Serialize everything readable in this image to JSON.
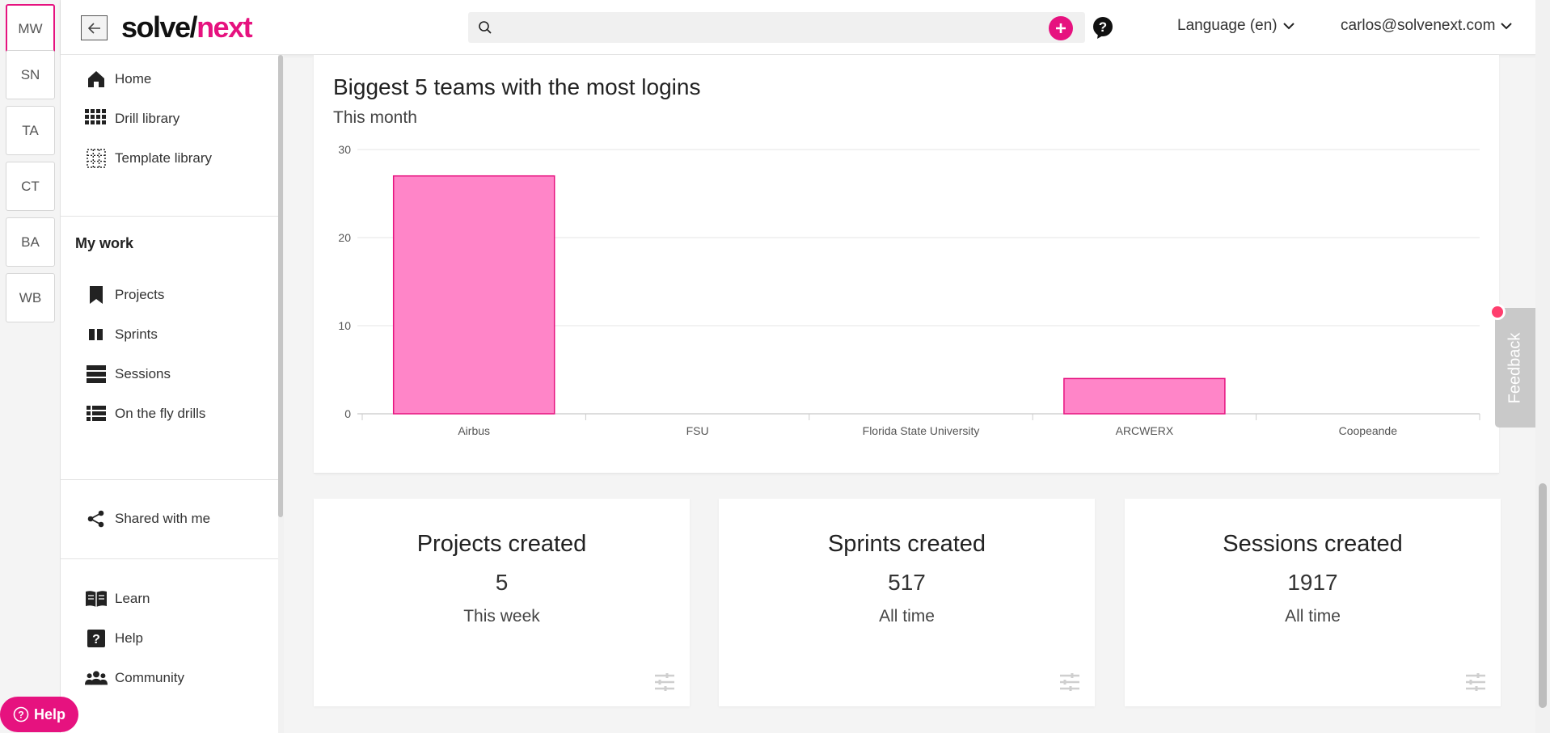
{
  "workspaces": [
    {
      "label": "MW",
      "active": true
    },
    {
      "label": "SN"
    },
    {
      "label": "TA"
    },
    {
      "label": "CT"
    },
    {
      "label": "BA"
    },
    {
      "label": "WB"
    }
  ],
  "header": {
    "logo_part1": "solve/",
    "logo_part2": "next",
    "search_placeholder": "",
    "language_label": "Language (en)",
    "user_email": "carlos@solvenext.com"
  },
  "sidebar": {
    "items": [
      {
        "label": "Home",
        "icon": "home-icon"
      },
      {
        "label": "Drill library",
        "icon": "grid-icon"
      },
      {
        "label": "Template library",
        "icon": "dotted-grid-icon"
      }
    ],
    "my_work_title": "My work",
    "my_work_items": [
      {
        "label": "Projects",
        "icon": "bookmark-icon"
      },
      {
        "label": "Sprints",
        "icon": "columns-icon"
      },
      {
        "label": "Sessions",
        "icon": "stack-icon"
      },
      {
        "label": "On the fly drills",
        "icon": "list-icon"
      }
    ],
    "shared_item": {
      "label": "Shared with me",
      "icon": "share-icon"
    },
    "bottom_items": [
      {
        "label": "Learn",
        "icon": "book-icon"
      },
      {
        "label": "Help",
        "icon": "question-icon"
      },
      {
        "label": "Community",
        "icon": "people-icon"
      }
    ]
  },
  "chart": {
    "title": "Biggest 5 teams with the most logins",
    "subtitle": "This month"
  },
  "chart_data": {
    "type": "bar",
    "title": "Biggest 5 teams with the most logins",
    "subtitle": "This month",
    "categories": [
      "Airbus",
      "FSU",
      "Florida State University",
      "ARCWERX",
      "Coopeande"
    ],
    "values": [
      27,
      0,
      0,
      4,
      0
    ],
    "ylim": [
      0,
      30
    ],
    "yticks": [
      0,
      10,
      20,
      30
    ],
    "grid": true,
    "bar_color": "#ff85c8",
    "bar_border": "#e6127f"
  },
  "stats": [
    {
      "title": "Projects created",
      "value": "5",
      "period": "This week"
    },
    {
      "title": "Sprints created",
      "value": "517",
      "period": "All time"
    },
    {
      "title": "Sessions created",
      "value": "1917",
      "period": "All time"
    }
  ],
  "feedback_label": "Feedback",
  "help_button_label": "Help",
  "colors": {
    "accent": "#e6127f"
  }
}
